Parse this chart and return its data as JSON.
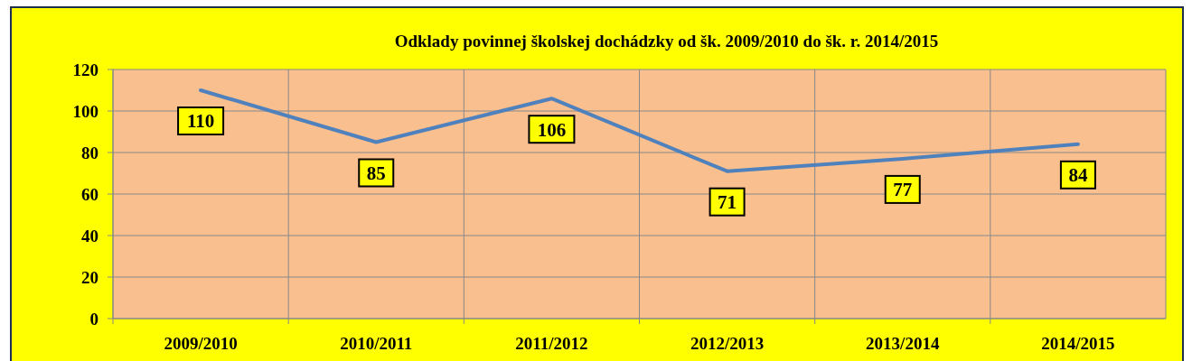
{
  "chart_data": {
    "type": "line",
    "title": "Odklady povinnej školskej dochádzky od šk. 2009/2010 do šk. r. 2014/2015",
    "categories": [
      "2009/2010",
      "2010/2011",
      "2011/2012",
      "2012/2013",
      "2013/2014",
      "2014/2015"
    ],
    "series": [
      {
        "color": "#4f81bd",
        "values": [
          110,
          85,
          106,
          71,
          77,
          84
        ]
      }
    ],
    "ylim": [
      0,
      120
    ],
    "yticks": [
      0,
      20,
      40,
      60,
      80,
      100,
      120
    ],
    "grid": true,
    "data_labels": true,
    "marker": "none"
  }
}
